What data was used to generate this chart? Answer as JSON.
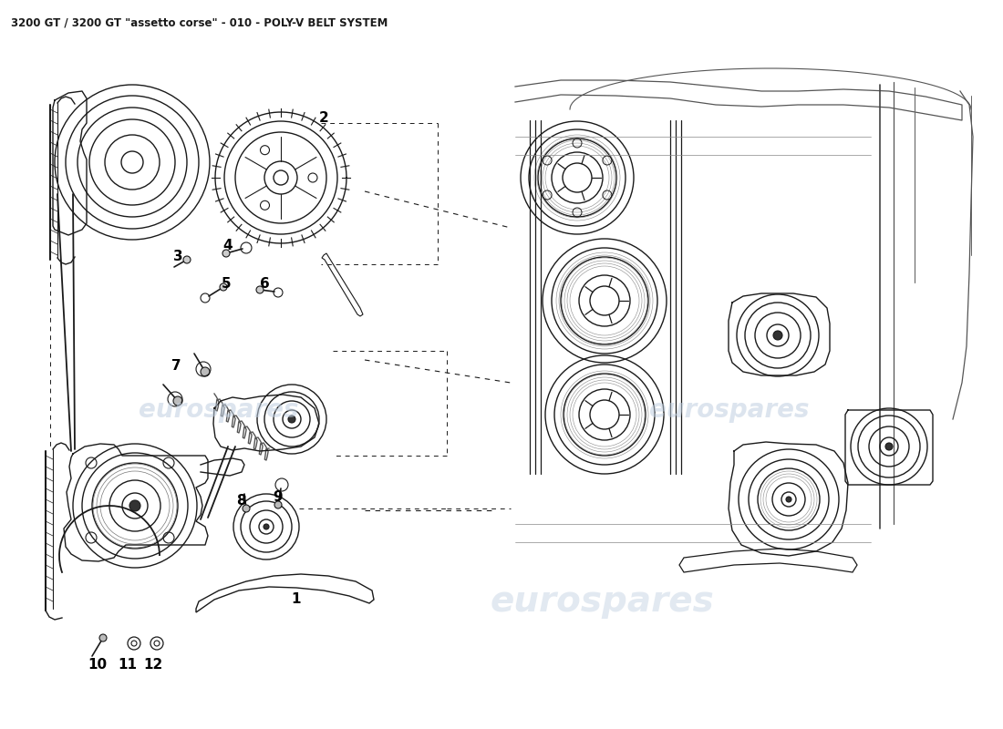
{
  "title": "3200 GT / 3200 GT \"assetto corse\" - 010 - POLY-V BELT SYSTEM",
  "title_fontsize": 8.5,
  "background_color": "#ffffff",
  "watermark_text": "eurospares",
  "watermark_color_left": "#c0cfe0",
  "watermark_color_right": "#c0cfe0",
  "watermark_alpha": 0.55,
  "fig_width": 11.0,
  "fig_height": 8.0,
  "dpi": 100,
  "line_color": "#1a1a1a",
  "light_gray": "#aaaaaa",
  "mid_gray": "#888888"
}
